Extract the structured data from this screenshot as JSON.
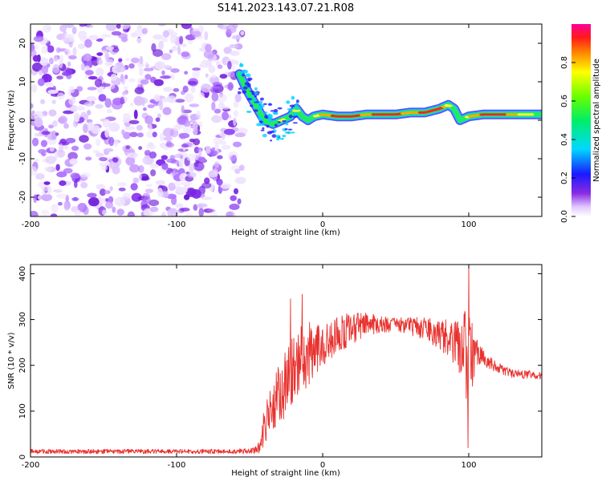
{
  "title": "S141.2023.143.07.21.R08",
  "chart_data": [
    {
      "type": "heatmap",
      "xlabel": "Height of straight line (km)",
      "ylabel": "Frequency (Hz)",
      "xlim": [
        -200,
        150
      ],
      "ylim": [
        -25,
        25
      ],
      "xticks": [
        -200,
        -100,
        0,
        100
      ],
      "yticks": [
        -20,
        -10,
        0,
        10,
        20
      ],
      "colorbar": {
        "label": "Normalized spectral amplitude",
        "range": [
          0,
          1
        ],
        "ticks": [
          "0.0",
          "0.2",
          "0.4",
          "0.6",
          "0.8"
        ]
      },
      "noise_region_x": [
        -200,
        -57
      ],
      "ridge": {
        "x": [
          -57,
          -52,
          -46,
          -40,
          -34,
          -28,
          -22,
          -18,
          -14,
          -10,
          -6,
          0,
          10,
          20,
          30,
          40,
          50,
          60,
          70,
          80,
          86,
          90,
          94,
          100,
          110,
          120,
          130,
          140,
          150
        ],
        "freq": [
          12,
          8,
          4,
          0,
          -1,
          0,
          1,
          3,
          1,
          0,
          1,
          1.5,
          1,
          1,
          1.5,
          1.5,
          1.5,
          2,
          2,
          3,
          4,
          3,
          0,
          1,
          1.5,
          1.5,
          1.5,
          1.5,
          1.5
        ],
        "amp": [
          0.3,
          0.45,
          0.55,
          0.4,
          0.5,
          0.65,
          0.55,
          0.75,
          0.5,
          0.6,
          0.6,
          0.85,
          0.9,
          0.95,
          0.85,
          0.95,
          0.9,
          0.85,
          0.9,
          0.95,
          0.7,
          0.5,
          0.35,
          0.8,
          0.9,
          0.95,
          0.85,
          0.7,
          0.5
        ]
      }
    },
    {
      "type": "line",
      "xlabel": "Height of straight line (km)",
      "ylabel": "SNR (10 * v/v)",
      "xlim": [
        -200,
        150
      ],
      "ylim": [
        0,
        420
      ],
      "xticks": [
        -200,
        -100,
        0,
        100
      ],
      "yticks": [
        0,
        100,
        200,
        300,
        400
      ],
      "color": "#e8322f",
      "envelope": {
        "x": [
          -200,
          -150,
          -100,
          -60,
          -45,
          -42,
          -38,
          -34,
          -30,
          -26,
          -22,
          -18,
          -14,
          -10,
          -5,
          0,
          10,
          20,
          30,
          40,
          50,
          60,
          70,
          80,
          86,
          90,
          94,
          97,
          99,
          100,
          101,
          103,
          106,
          110,
          115,
          120,
          125,
          130,
          140,
          150
        ],
        "center": [
          12,
          12,
          12,
          12,
          15,
          40,
          90,
          120,
          140,
          160,
          185,
          200,
          210,
          225,
          240,
          250,
          265,
          280,
          290,
          290,
          290,
          285,
          280,
          265,
          255,
          250,
          240,
          230,
          200,
          180,
          200,
          225,
          230,
          220,
          205,
          195,
          188,
          182,
          180,
          178
        ],
        "spread": [
          5,
          5,
          5,
          5,
          8,
          30,
          50,
          60,
          70,
          75,
          80,
          80,
          75,
          70,
          60,
          50,
          45,
          35,
          25,
          20,
          15,
          20,
          25,
          35,
          45,
          55,
          70,
          90,
          120,
          140,
          110,
          60,
          30,
          20,
          15,
          12,
          10,
          10,
          9,
          8
        ]
      },
      "peaks": [
        {
          "x": 100,
          "y": 420
        },
        {
          "x": 99.6,
          "y": 20
        },
        {
          "x": -14,
          "y": 355
        },
        {
          "x": -22,
          "y": 345
        }
      ]
    }
  ]
}
